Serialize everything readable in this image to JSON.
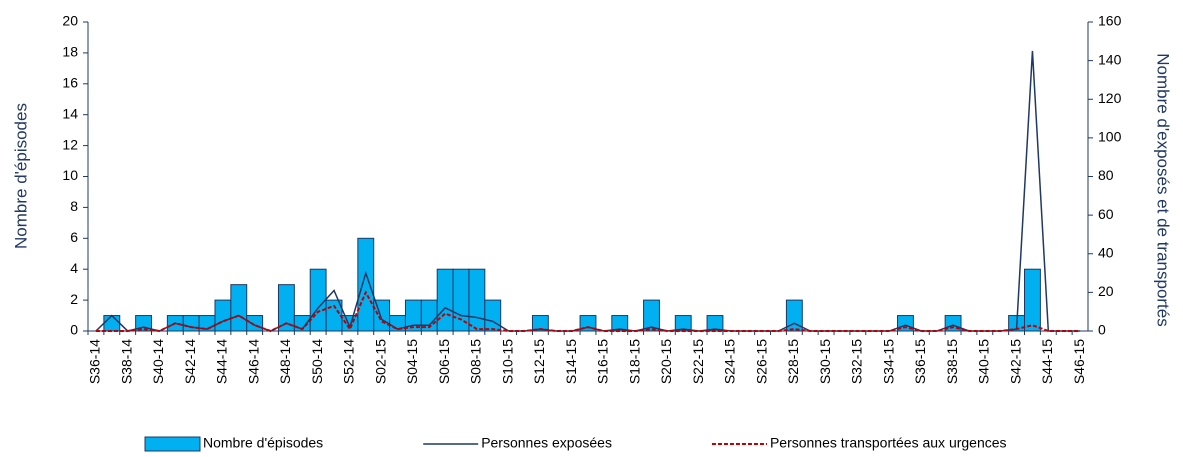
{
  "chart_data": {
    "type": "bar_line",
    "y_label": "Nombre d'épisodes",
    "y2_label": "Nombre d'exposés et de transportés",
    "categories": [
      "S36-14",
      null,
      "S38-14",
      null,
      "S40-14",
      null,
      "S42-14",
      null,
      "S44-14",
      null,
      "S46-14",
      null,
      "S48-14",
      null,
      "S50-14",
      null,
      "S52-14",
      null,
      "S02-15",
      null,
      "S04-15",
      null,
      "S06-15",
      null,
      "S08-15",
      null,
      "S10-15",
      null,
      "S12-15",
      null,
      "S14-15",
      null,
      "S16-15",
      null,
      "S18-15",
      null,
      "S20-15",
      null,
      "S22-15",
      null,
      "S24-15",
      null,
      "S26-15",
      null,
      "S28-15",
      null,
      "S30-15",
      null,
      "S32-15",
      null,
      "S34-15",
      null,
      "S36-15",
      null,
      "S38-15",
      null,
      "S40-15",
      null,
      "S42-15",
      null,
      "S44-15",
      null,
      "S46-15"
    ],
    "series": [
      {
        "name": "Nombre d'épisodes",
        "kind": "bar",
        "color": "#00b0f0",
        "values": [
          0,
          1,
          0,
          1,
          0,
          1,
          1,
          1,
          2,
          3,
          1,
          0,
          3,
          1,
          4,
          2,
          1,
          6,
          2,
          1,
          2,
          2,
          4,
          4,
          4,
          2,
          0,
          0,
          1,
          0,
          0,
          1,
          0,
          1,
          0,
          2,
          0,
          1,
          0,
          1,
          0,
          0,
          0,
          0,
          2,
          0,
          0,
          0,
          0,
          0,
          0,
          1,
          0,
          0,
          1,
          0,
          0,
          0,
          1,
          4,
          0,
          0,
          0
        ]
      },
      {
        "name": "Personnes exposées",
        "kind": "line",
        "axis": "y2",
        "color": "#1f3864",
        "values": [
          0,
          8,
          0,
          2,
          0,
          4,
          2,
          1,
          5,
          8,
          3,
          0,
          4,
          1,
          12,
          21,
          2,
          30,
          6,
          1,
          3,
          3,
          12,
          8,
          7,
          5,
          0,
          0,
          1,
          0,
          0,
          2,
          0,
          1,
          0,
          2,
          0,
          1,
          0,
          1,
          0,
          0,
          0,
          0,
          4,
          0,
          0,
          0,
          0,
          0,
          0,
          3,
          0,
          0,
          3,
          0,
          0,
          0,
          1,
          145,
          0,
          0,
          0
        ]
      },
      {
        "name": "Personnes transportées aux urgences",
        "kind": "dashed",
        "axis": "y2",
        "color": "#c00000",
        "values": [
          0,
          0,
          0,
          1,
          0,
          4,
          2,
          1,
          5,
          8,
          3,
          0,
          4,
          1,
          10,
          13,
          1,
          20,
          5,
          1,
          2,
          2,
          9,
          6,
          1,
          1,
          0,
          0,
          1,
          0,
          0,
          2,
          0,
          0,
          0,
          1,
          0,
          0,
          0,
          0,
          0,
          0,
          0,
          0,
          1,
          0,
          0,
          0,
          0,
          0,
          0,
          2,
          0,
          0,
          2,
          0,
          0,
          0,
          1,
          3,
          0,
          0,
          0
        ]
      }
    ],
    "ylim": [
      0,
      20
    ],
    "yticks": [
      0,
      2,
      4,
      6,
      8,
      10,
      12,
      14,
      16,
      18,
      20
    ],
    "y2lim": [
      0,
      160
    ],
    "y2ticks": [
      0,
      20,
      40,
      60,
      80,
      100,
      120,
      140,
      160
    ]
  }
}
